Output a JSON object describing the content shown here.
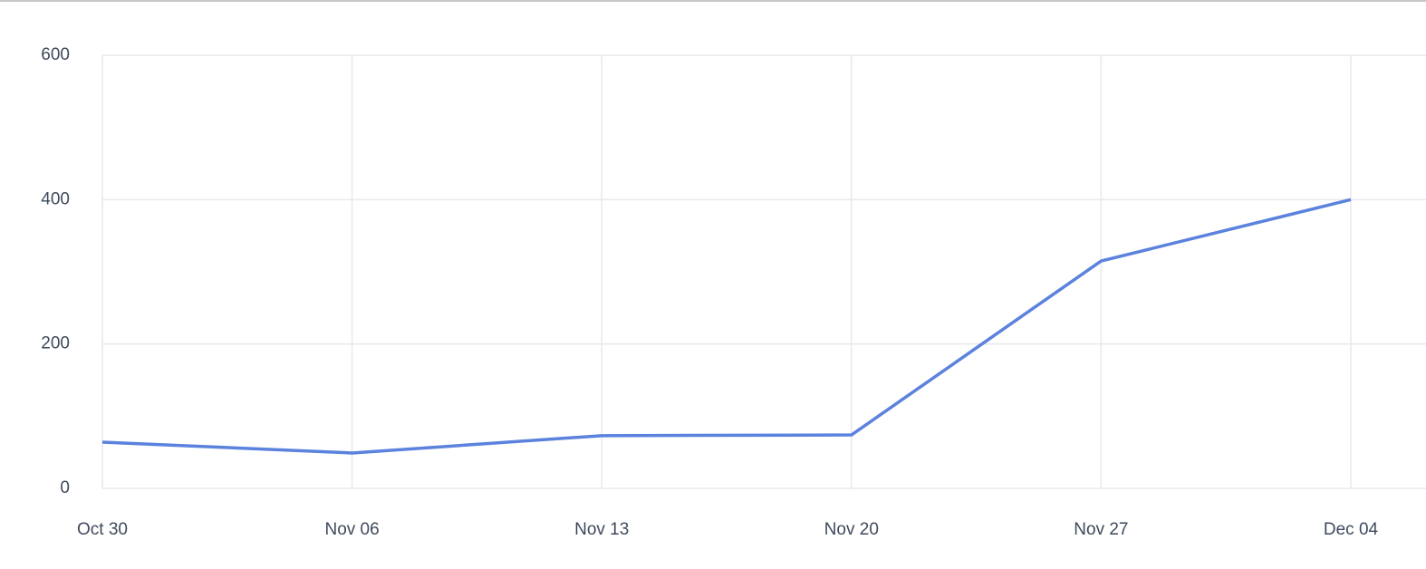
{
  "chart_data": {
    "type": "line",
    "categories": [
      "Oct 30",
      "Nov 06",
      "Nov 13",
      "Nov 20",
      "Nov 27",
      "Dec 04"
    ],
    "values": [
      64,
      49,
      73,
      74,
      315,
      400
    ],
    "color": "#5b82dd",
    "ylim": [
      0,
      600
    ],
    "yticks": [
      0,
      200,
      400,
      600
    ],
    "grid": true
  }
}
